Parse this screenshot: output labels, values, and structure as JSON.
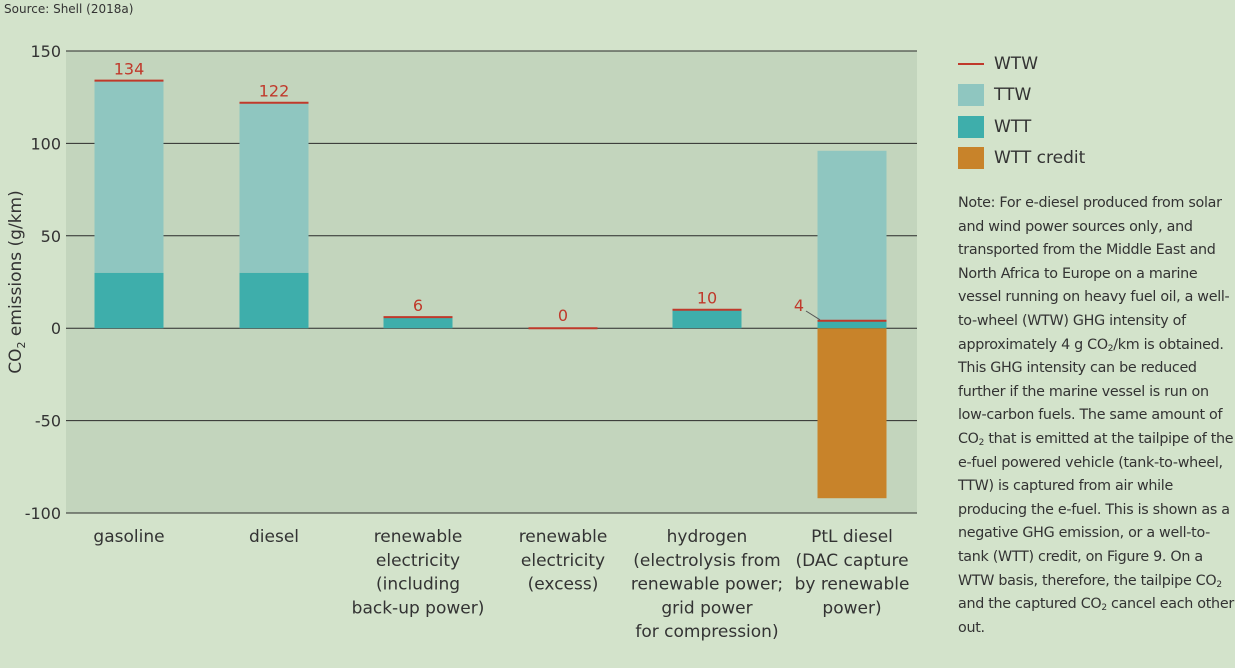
{
  "source": "Source: Shell (2018a)",
  "chart_data": {
    "type": "bar",
    "stacked": true,
    "ylabel_main": "CO",
    "ylabel_sub": "2",
    "ylabel_rest": " emissions (g/km)",
    "ylim": [
      -100,
      150
    ],
    "yticks": [
      150,
      100,
      50,
      0,
      -50,
      -100
    ],
    "ytick_labels": [
      "150",
      "100",
      "50",
      "0",
      "-50",
      "-100"
    ],
    "grid": true,
    "legend_position": "right",
    "categories": [
      [
        "gasoline"
      ],
      [
        "diesel"
      ],
      [
        "renewable",
        "electricity",
        "(including",
        "back-up power)"
      ],
      [
        "renewable",
        "electricity",
        "(excess)"
      ],
      [
        "hydrogen",
        "(electrolysis from",
        "renewable power;",
        "grid power",
        "for compression)"
      ],
      [
        "PtL diesel",
        "(DAC capture",
        "by renewable",
        "power)"
      ]
    ],
    "series": [
      {
        "name": "WTT credit",
        "color": "#c8832a",
        "values": [
          0,
          0,
          0,
          0,
          0,
          -92
        ]
      },
      {
        "name": "WTT",
        "color": "#3eaeab",
        "values": [
          30,
          30,
          6,
          0,
          10,
          4
        ]
      },
      {
        "name": "TTW",
        "color": "#8fc6c0",
        "values": [
          104,
          92,
          0,
          0,
          0,
          92
        ]
      }
    ],
    "wtw": {
      "name": "WTW",
      "color": "#c0392b",
      "values": [
        134,
        122,
        6,
        0,
        10,
        4
      ],
      "labels": [
        "134",
        "122",
        "6",
        "0",
        "10",
        "4"
      ]
    }
  },
  "legend": [
    {
      "label": "WTW",
      "kind": "line",
      "color": "#c0392b"
    },
    {
      "label": "TTW",
      "kind": "box",
      "color": "#8fc6c0"
    },
    {
      "label": "WTT",
      "kind": "box",
      "color": "#3eaeab"
    },
    {
      "label": "WTT credit",
      "kind": "box",
      "color": "#c8832a"
    }
  ],
  "note": {
    "p1": "Note: For e-diesel produced from solar and wind power sources only, and transported from the Middle East and North Africa to Europe on a marine vessel running on heavy fuel oil, a well-to-wheel (WTW) GHG intensity of approximately 4 g CO",
    "p1_sub": "2",
    "p2": "/km is obtained. This GHG intensity can be reduced further if the marine vessel is run on low-carbon fuels. The same amount of CO",
    "p2_sub": "2",
    "p3": " that is emitted at the tailpipe of the e-fuel powered vehicle (tank-to-wheel, TTW) is captured from air while producing the e-fuel. This is shown as a negative GHG emission, or a well-to-tank (WTT) credit, on Figure 9. On a WTW basis, therefore, the tailpipe CO",
    "p3_sub": "2",
    "p4": " and the captured CO",
    "p4_sub": "2",
    "p5": " cancel each other out."
  }
}
